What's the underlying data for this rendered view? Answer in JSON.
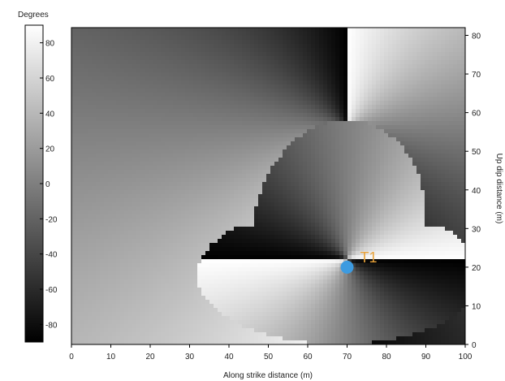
{
  "chart_data": {
    "type": "heatmap",
    "title": "",
    "xlabel": "Along strike distance (m)",
    "ylabel": "Up dip distance (m)",
    "xlim": [
      0,
      100
    ],
    "ylim": [
      0,
      82
    ],
    "x_ticks": [
      "0",
      "10",
      "20",
      "30",
      "40",
      "50",
      "60",
      "70",
      "80",
      "90",
      "100"
    ],
    "y_ticks": [
      "0",
      "10",
      "20",
      "30",
      "40",
      "50",
      "60",
      "70",
      "80"
    ],
    "colorbar": {
      "title": "Degrees",
      "range": [
        -90,
        90
      ],
      "ticks": [
        "80",
        "60",
        "40",
        "20",
        "0",
        "-20",
        "-40",
        "-60",
        "-80"
      ],
      "colormap": "gray"
    },
    "annotations": [
      {
        "label": "T1",
        "x": 70,
        "y": 20,
        "marker_color": "#3d9be0",
        "label_color": "#e8a23a"
      }
    ]
  }
}
